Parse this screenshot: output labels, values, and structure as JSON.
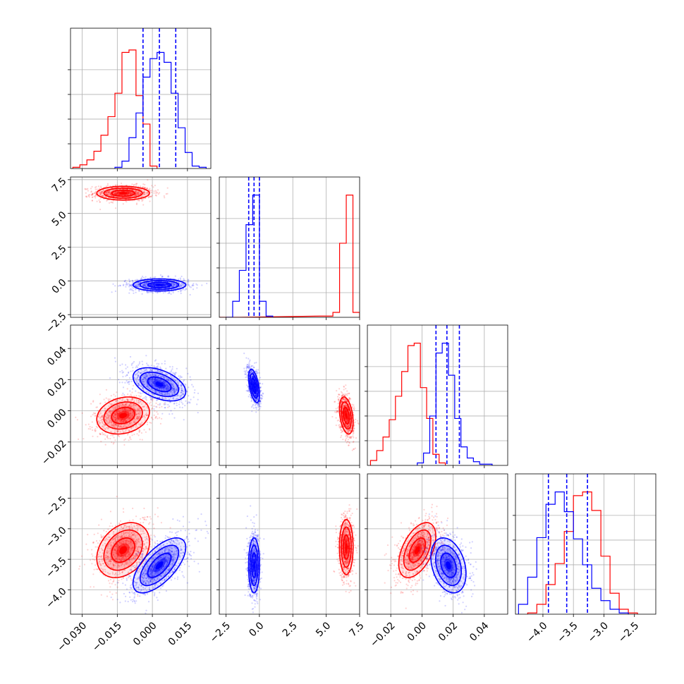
{
  "chart_data": {
    "type": "corner",
    "title": "",
    "series_colors": {
      "red": "#ff0000",
      "blue": "#0000ff"
    },
    "grid": true,
    "params": [
      {
        "xlim": [
          -0.035,
          0.025
        ],
        "xticks": [
          -0.03,
          -0.015,
          0.0,
          0.015
        ],
        "xtick_labels": [
          "−0.030",
          "−0.015",
          "0.000",
          "0.015"
        ]
      },
      {
        "xlim": [
          -3.0,
          7.5
        ],
        "xticks": [
          -2.5,
          0.0,
          2.5,
          5.0,
          7.5
        ],
        "xtick_labels": [
          "−2.5",
          "0.0",
          "2.5",
          "5.0",
          "7.5"
        ],
        "ylim": [
          -2.7,
          7.7
        ],
        "yticks": [
          -2.5,
          0.0,
          2.5,
          5.0,
          7.5
        ],
        "ytick_labels": [
          "−2.5",
          "0.0",
          "2.5",
          "5.0",
          "7.5"
        ]
      },
      {
        "xlim": [
          -0.035,
          0.055
        ],
        "xticks": [
          -0.02,
          0.0,
          0.02,
          0.04
        ],
        "xtick_labels": [
          "−0.02",
          "0.00",
          "0.02",
          "0.04"
        ],
        "ylim": [
          -0.035,
          0.055
        ],
        "yticks": [
          -0.02,
          0.0,
          0.02,
          0.04
        ],
        "ytick_labels": [
          "−0.02",
          "0.00",
          "0.02",
          "0.04"
        ]
      },
      {
        "xlim": [
          -4.45,
          -2.15
        ],
        "xticks": [
          -4.0,
          -3.5,
          -3.0,
          -2.5
        ],
        "xtick_labels": [
          "−4.0",
          "−3.5",
          "−3.0",
          "−2.5"
        ],
        "ylim": [
          -4.4,
          -2.1
        ],
        "yticks": [
          -4.0,
          -3.5,
          -3.0,
          -2.5
        ],
        "ytick_labels": [
          "−4.0",
          "−3.5",
          "−3.0",
          "−2.5"
        ]
      }
    ],
    "marginals": {
      "red": [
        {
          "x": [
            -0.0325,
            -0.0295,
            -0.0265,
            -0.0235,
            -0.0205,
            -0.0175,
            -0.0145,
            -0.0115,
            -0.0085,
            -0.0055,
            -0.0025,
            0.0005
          ],
          "counts": [
            0.01,
            0.03,
            0.07,
            0.14,
            0.27,
            0.42,
            0.61,
            0.94,
            0.96,
            0.59,
            0.36,
            0.02
          ]
        },
        {
          "x": [
            -2.75,
            -2.25,
            -1.75,
            4.75,
            5.25,
            5.75,
            6.25,
            6.75,
            7.25
          ],
          "counts": [
            0.0,
            0.0,
            0.0,
            0.01,
            0.01,
            0.04,
            0.6,
            0.99,
            0.04
          ]
        },
        {
          "x": [
            -0.031,
            -0.027,
            -0.023,
            -0.019,
            -0.015,
            -0.011,
            -0.007,
            -0.003,
            0.001,
            0.005,
            0.009,
            0.013
          ],
          "counts": [
            0.04,
            0.12,
            0.23,
            0.37,
            0.56,
            0.76,
            0.97,
            0.99,
            0.63,
            0.38,
            0.09,
            0.02
          ]
        },
        {
          "x": [
            -4.175,
            -4.025,
            -3.875,
            -3.725,
            -3.575,
            -3.425,
            -3.275,
            -3.125,
            -2.975,
            -2.825,
            -2.675,
            -2.525
          ],
          "counts": [
            0.01,
            0.08,
            0.24,
            0.41,
            0.67,
            0.96,
            0.99,
            0.84,
            0.47,
            0.17,
            0.04,
            0.01
          ]
        }
      ],
      "blue": [
        {
          "x": [
            -0.0145,
            -0.0115,
            -0.0085,
            -0.0055,
            -0.0025,
            0.0005,
            0.0035,
            0.0065,
            0.0095,
            0.0125,
            0.0155,
            0.0185,
            0.0215
          ],
          "counts": [
            0.01,
            0.06,
            0.25,
            0.45,
            0.74,
            0.89,
            0.94,
            0.86,
            0.61,
            0.33,
            0.13,
            0.02,
            0.01
          ]
        },
        {
          "x": [
            -2.25,
            -1.75,
            -1.25,
            -0.75,
            -0.25,
            0.25,
            0.75
          ],
          "counts": [
            0.0,
            0.13,
            0.38,
            0.75,
            0.99,
            0.13,
            0.01
          ]
        },
        {
          "x": [
            -0.001,
            0.003,
            0.007,
            0.011,
            0.015,
            0.019,
            0.023,
            0.027,
            0.031,
            0.035,
            0.039,
            0.043
          ],
          "counts": [
            0.02,
            0.1,
            0.4,
            0.91,
            0.99,
            0.73,
            0.38,
            0.15,
            0.06,
            0.03,
            0.01,
            0.01
          ]
        },
        {
          "x": [
            -4.325,
            -4.175,
            -4.025,
            -3.875,
            -3.725,
            -3.575,
            -3.425,
            -3.275,
            -3.125,
            -2.975,
            -2.825,
            -2.675
          ],
          "counts": [
            0.08,
            0.3,
            0.62,
            0.89,
            0.99,
            0.83,
            0.61,
            0.4,
            0.21,
            0.11,
            0.04,
            0.01
          ]
        }
      ],
      "blue_quantiles": [
        [
          -0.004,
          0.003,
          0.01
        ],
        [
          -0.8,
          -0.4,
          0.0
        ],
        [
          0.009,
          0.016,
          0.024
        ],
        [
          -3.91,
          -3.61,
          -3.27
        ]
      ]
    },
    "contours": {
      "red": [
        {
          "row": 1,
          "col": 0,
          "mean": [
            -0.0125,
            6.5
          ],
          "sd": [
            0.0055,
            0.25
          ],
          "rho": 0.0
        },
        {
          "row": 2,
          "col": 0,
          "mean": [
            -0.0125,
            -0.003
          ],
          "sd": [
            0.0055,
            0.0058
          ],
          "rho": 0.2
        },
        {
          "row": 2,
          "col": 1,
          "mean": [
            6.5,
            -0.003
          ],
          "sd": [
            0.25,
            0.0058
          ],
          "rho": -0.35
        },
        {
          "row": 3,
          "col": 0,
          "mean": [
            -0.0125,
            -3.35
          ],
          "sd": [
            0.0055,
            0.22
          ],
          "rho": 0.3
        },
        {
          "row": 3,
          "col": 1,
          "mean": [
            6.5,
            -3.3
          ],
          "sd": [
            0.25,
            0.22
          ],
          "rho": 0.0
        },
        {
          "row": 3,
          "col": 2,
          "mean": [
            -0.003,
            -3.35
          ],
          "sd": [
            0.0058,
            0.22
          ],
          "rho": 0.5
        }
      ],
      "blue": [
        {
          "row": 1,
          "col": 0,
          "mean": [
            0.003,
            -0.3
          ],
          "sd": [
            0.0055,
            0.22
          ],
          "rho": 0.0
        },
        {
          "row": 2,
          "col": 0,
          "mean": [
            0.003,
            0.017
          ],
          "sd": [
            0.0055,
            0.0052
          ],
          "rho": -0.45
        },
        {
          "row": 2,
          "col": 1,
          "mean": [
            -0.4,
            0.016
          ],
          "sd": [
            0.2,
            0.0052
          ],
          "rho": -0.5
        },
        {
          "row": 3,
          "col": 0,
          "mean": [
            0.003,
            -3.6
          ],
          "sd": [
            0.0055,
            0.22
          ],
          "rho": 0.65
        },
        {
          "row": 3,
          "col": 1,
          "mean": [
            -0.4,
            -3.6
          ],
          "sd": [
            0.2,
            0.22
          ],
          "rho": 0.0
        },
        {
          "row": 3,
          "col": 2,
          "mean": [
            0.017,
            -3.6
          ],
          "sd": [
            0.0055,
            0.22
          ],
          "rho": -0.3
        }
      ]
    }
  }
}
